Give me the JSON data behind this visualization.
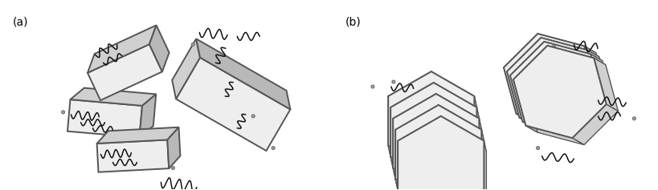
{
  "fig_width": 8.19,
  "fig_height": 2.37,
  "dpi": 100,
  "background": "#ffffff",
  "label_a": "(a)",
  "label_b": "(b)",
  "label_fontsize": 10,
  "clay_face": "#eeeeee",
  "clay_face_dark": "#d0d0d0",
  "clay_face_darker": "#b8b8b8",
  "clay_edge": "#555555",
  "clay_lw": 1.4,
  "poly_color": "#111111",
  "poly_lw": 1.1,
  "circ_face": "#aaaaaa",
  "circ_edge": "#777777",
  "circ_lw": 1.0,
  "circ_r": 0.008
}
